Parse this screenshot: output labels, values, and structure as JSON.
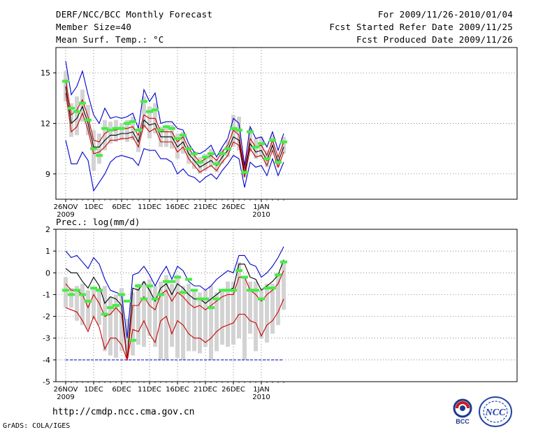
{
  "header": {
    "title": "DERF/NCC/BCC Monthly Forecast",
    "member_size": "Member Size=40",
    "variable": "Mean Surf. Temp.: °C",
    "period": "For 2009/11/26-2010/01/04",
    "fcst_started": "Fcst Started Refer Date 2009/11/25",
    "fcst_produced": "Fcst Produced Date 2009/11/26"
  },
  "footer": {
    "url": "http://cmdp.ncc.cma.gov.cn",
    "credit": "GrADS: COLA/IGES",
    "logo_bcc_text": "BCC",
    "logo_ncc_text": "NCC"
  },
  "colors": {
    "mean": "#000000",
    "sd": "#cc0000",
    "range": "#0000cc",
    "box": "#d3d3d3",
    "obs": "#44ee44",
    "baseline": "#0000cc",
    "grid": "#555555"
  },
  "chart_data": [
    {
      "type": "line",
      "title": "Mean Surf. Temp.: °C",
      "ylim": [
        7.5,
        16.5
      ],
      "yticks": [
        9,
        12,
        15
      ],
      "xtick_index": [
        0,
        5,
        10,
        15,
        20,
        25,
        30,
        35
      ],
      "xtick_labels": [
        "26NOV",
        "1DEC",
        "6DEC",
        "11DEC",
        "16DEC",
        "21DEC",
        "26DEC",
        "1JAN"
      ],
      "xtick_years": {
        "0": "2009",
        "35": "2010"
      },
      "grid": "dotted",
      "series": [
        {
          "name": "ensemble mean",
          "color": "black",
          "values": [
            14.2,
            12.0,
            12.3,
            13.0,
            12.0,
            10.6,
            10.6,
            11.0,
            11.3,
            11.3,
            11.4,
            11.4,
            11.5,
            10.9,
            12.2,
            11.9,
            12.0,
            11.2,
            11.2,
            11.2,
            10.6,
            10.9,
            10.2,
            9.8,
            9.4,
            9.6,
            9.8,
            9.5,
            10.0,
            10.4,
            11.2,
            11.0,
            9.0,
            10.8,
            10.3,
            10.4,
            9.8,
            10.7,
            9.7,
            10.6
          ]
        },
        {
          "name": "mean + sd",
          "color": "red",
          "values": [
            14.6,
            12.5,
            12.8,
            13.4,
            12.4,
            11.0,
            10.9,
            11.4,
            11.6,
            11.6,
            11.7,
            11.7,
            11.8,
            11.3,
            12.5,
            12.3,
            12.3,
            11.5,
            11.5,
            11.5,
            10.9,
            11.2,
            10.5,
            10.1,
            9.7,
            9.9,
            10.1,
            9.8,
            10.3,
            10.7,
            11.6,
            11.3,
            9.3,
            11.1,
            10.6,
            10.7,
            10.1,
            11.0,
            10.0,
            10.9
          ]
        },
        {
          "name": "mean - sd",
          "color": "red",
          "values": [
            13.8,
            11.5,
            11.8,
            12.6,
            11.6,
            10.2,
            10.3,
            10.6,
            11.0,
            11.0,
            11.1,
            11.1,
            11.2,
            10.6,
            11.9,
            11.5,
            11.7,
            10.9,
            10.9,
            10.9,
            10.3,
            10.6,
            9.9,
            9.5,
            9.1,
            9.3,
            9.5,
            9.2,
            9.7,
            10.1,
            10.9,
            10.7,
            8.8,
            10.5,
            10.0,
            10.1,
            9.5,
            10.4,
            9.4,
            10.3
          ]
        },
        {
          "name": "ensemble max",
          "color": "blue",
          "values": [
            15.7,
            13.7,
            14.2,
            15.1,
            13.7,
            12.5,
            12.0,
            12.9,
            12.3,
            12.4,
            12.3,
            12.4,
            12.6,
            11.7,
            14.0,
            13.3,
            13.8,
            12.0,
            12.1,
            12.1,
            11.7,
            11.6,
            10.8,
            10.3,
            10.2,
            10.4,
            10.7,
            10.0,
            10.6,
            11.1,
            12.3,
            12.0,
            9.5,
            11.8,
            11.1,
            11.2,
            10.6,
            11.5,
            10.4,
            11.4
          ]
        },
        {
          "name": "ensemble min",
          "color": "blue",
          "values": [
            11.0,
            9.6,
            9.6,
            10.3,
            9.8,
            8.0,
            8.5,
            9.0,
            9.7,
            10.0,
            10.1,
            10.0,
            9.9,
            9.5,
            10.5,
            10.4,
            10.4,
            9.9,
            9.9,
            9.7,
            9.0,
            9.3,
            8.9,
            8.8,
            8.5,
            8.8,
            9.0,
            8.7,
            9.2,
            9.6,
            10.1,
            9.9,
            8.2,
            9.7,
            9.4,
            9.5,
            8.9,
            9.9,
            8.9,
            9.7
          ]
        },
        {
          "name": "observed / climatology",
          "color": "green",
          "values": [
            14.5,
            12.9,
            12.7,
            13.2,
            12.2,
            10.5,
            10.1,
            11.7,
            11.6,
            11.7,
            11.7,
            12.0,
            12.1,
            11.6,
            13.3,
            12.7,
            12.8,
            11.6,
            11.8,
            11.7,
            11.1,
            11.3,
            10.5,
            10.2,
            9.7,
            10.0,
            10.2,
            9.6,
            10.2,
            10.5,
            11.7,
            11.6,
            9.1,
            11.5,
            10.6,
            10.8,
            9.9,
            11.0,
            9.7,
            10.9
          ]
        }
      ],
      "boxes": {
        "name": "member spread (25-75%)",
        "low": [
          13.3,
          11.2,
          11.3,
          12.1,
          11.3,
          9.2,
          9.6,
          10.4,
          10.8,
          10.9,
          11.0,
          10.9,
          11.0,
          10.3,
          11.7,
          11.1,
          11.4,
          10.6,
          10.6,
          10.5,
          9.9,
          10.2,
          9.6,
          9.3,
          9.0,
          9.2,
          9.4,
          9.1,
          9.6,
          10.0,
          10.6,
          10.4,
          8.8,
          10.3,
          9.9,
          10.0,
          9.4,
          10.3,
          9.4,
          10.2
        ],
        "high": [
          15.1,
          13.2,
          13.6,
          14.0,
          13.1,
          11.6,
          11.4,
          12.2,
          12.1,
          12.2,
          12.0,
          12.2,
          12.4,
          11.4,
          13.6,
          13.0,
          13.2,
          11.8,
          11.9,
          11.9,
          11.4,
          11.5,
          10.7,
          10.3,
          10.0,
          10.2,
          10.5,
          9.9,
          10.5,
          11.0,
          12.5,
          12.4,
          9.6,
          11.7,
          11.1,
          11.2,
          10.4,
          11.3,
          10.1,
          11.2
        ]
      }
    },
    {
      "type": "line",
      "title": "Prec.: log(mm/d)",
      "ylim": [
        -5,
        2
      ],
      "yticks": [
        -5,
        -4,
        -3,
        -2,
        -1,
        0,
        1,
        2
      ],
      "xtick_index": [
        0,
        5,
        10,
        15,
        20,
        25,
        30,
        35
      ],
      "xtick_labels": [
        "26NOV",
        "1DEC",
        "6DEC",
        "11DEC",
        "16DEC",
        "21DEC",
        "26DEC",
        "1JAN"
      ],
      "xtick_years": {
        "0": "2009",
        "35": "2010"
      },
      "grid": "dotted",
      "baseline": -4,
      "series": [
        {
          "name": "ensemble mean",
          "color": "black",
          "values": [
            0.2,
            0.0,
            0.0,
            -0.4,
            -0.7,
            -0.2,
            -0.6,
            -1.4,
            -1.1,
            -1.2,
            -1.5,
            -4.0,
            -0.7,
            -0.8,
            -0.4,
            -0.8,
            -1.3,
            -0.7,
            -0.5,
            -1.0,
            -0.5,
            -0.7,
            -1.0,
            -1.2,
            -1.2,
            -1.4,
            -1.2,
            -1.0,
            -0.8,
            -0.8,
            -0.7,
            0.4,
            0.4,
            -0.2,
            -0.3,
            -0.8,
            -0.6,
            -0.4,
            -0.1,
            0.6
          ]
        },
        {
          "name": "mean + sd",
          "color": "red",
          "values": [
            -0.5,
            -0.8,
            -0.8,
            -1.0,
            -1.6,
            -1.0,
            -1.4,
            -2.0,
            -1.9,
            -1.6,
            -1.9,
            -4.0,
            -1.5,
            -1.5,
            -1.1,
            -1.5,
            -1.7,
            -1.0,
            -0.8,
            -1.3,
            -0.9,
            -1.1,
            -1.4,
            -1.6,
            -1.5,
            -1.7,
            -1.5,
            -1.3,
            -1.1,
            -1.0,
            -1.0,
            -0.2,
            -0.2,
            -0.8,
            -1.0,
            -1.3,
            -1.0,
            -0.8,
            -0.5,
            0.1
          ]
        },
        {
          "name": "mean - sd",
          "color": "red",
          "values": [
            -1.6,
            -1.7,
            -1.8,
            -2.2,
            -2.7,
            -2.0,
            -2.5,
            -3.5,
            -3.0,
            -3.0,
            -3.3,
            -4.0,
            -2.6,
            -2.7,
            -2.2,
            -2.8,
            -3.2,
            -2.2,
            -2.0,
            -2.8,
            -2.2,
            -2.4,
            -2.8,
            -3.0,
            -3.0,
            -3.2,
            -3.0,
            -2.7,
            -2.5,
            -2.4,
            -2.3,
            -1.9,
            -1.9,
            -2.2,
            -2.3,
            -2.9,
            -2.4,
            -2.2,
            -1.8,
            -1.2
          ]
        },
        {
          "name": "ensemble max",
          "color": "blue",
          "values": [
            1.0,
            0.7,
            0.8,
            0.5,
            0.2,
            0.7,
            0.4,
            -0.3,
            -0.8,
            -0.9,
            -1.0,
            -3.0,
            -0.1,
            0.0,
            0.3,
            -0.1,
            -0.6,
            -0.1,
            0.3,
            -0.3,
            0.3,
            0.1,
            -0.4,
            -0.6,
            -0.6,
            -0.8,
            -0.6,
            -0.3,
            -0.1,
            0.1,
            0.0,
            0.8,
            0.8,
            0.4,
            0.3,
            -0.2,
            0.0,
            0.3,
            0.7,
            1.2
          ]
        },
        {
          "name": "ensemble min",
          "color": "blue",
          "values": [
            -4.0,
            -4.0,
            -4.0,
            -4.0,
            -4.0,
            -4.0,
            -4.0,
            -4.0,
            -4.0,
            -4.0,
            -4.0,
            -4.0,
            -4.0,
            -4.0,
            -4.0,
            -4.0,
            -4.0,
            -4.0,
            -4.0,
            -4.0,
            -4.0,
            -4.0,
            -4.0,
            -4.0,
            -4.0,
            -4.0,
            -4.0,
            -4.0,
            -4.0,
            -4.0,
            -4.0,
            -4.0,
            -4.0,
            -4.0,
            -4.0,
            -4.0,
            -4.0,
            -4.0,
            -4.0,
            -4.0
          ]
        },
        {
          "name": "observed / climatology",
          "color": "green",
          "values": [
            -0.8,
            -1.0,
            -0.8,
            -1.0,
            -1.3,
            -0.7,
            -0.8,
            -1.9,
            -1.6,
            -1.5,
            -1.0,
            -1.3,
            -3.1,
            -0.6,
            -1.2,
            -0.6,
            -1.2,
            -1.0,
            -0.4,
            -0.4,
            -0.2,
            -0.9,
            -0.3,
            -0.8,
            -1.2,
            -1.2,
            -1.6,
            -1.2,
            -0.8,
            -0.8,
            -0.8,
            0.1,
            -0.2,
            -0.8,
            -0.8,
            -1.2,
            -0.7,
            -0.7,
            -0.1,
            0.5
          ]
        }
      ],
      "boxes": {
        "name": "member spread (25-75%)",
        "low": [
          -1.6,
          -1.6,
          -2.2,
          -2.4,
          -2.6,
          -2.1,
          -2.4,
          -3.6,
          -3.8,
          -3.9,
          -3.6,
          -3.9,
          -3.8,
          -3.3,
          -3.4,
          -2.9,
          -3.4,
          -4.0,
          -4.0,
          -3.4,
          -3.9,
          -4.0,
          -3.6,
          -3.6,
          -3.7,
          -3.4,
          -4.0,
          -3.6,
          -3.3,
          -3.4,
          -3.3,
          -3.0,
          -4.0,
          -2.8,
          -3.6,
          -3.0,
          -3.2,
          -2.8,
          -2.4,
          -1.7
        ],
        "high": [
          -0.2,
          -0.7,
          -0.6,
          -0.5,
          -0.8,
          -0.7,
          -0.7,
          -0.6,
          -1.1,
          -1.0,
          -0.7,
          -2.1,
          -0.9,
          -0.5,
          -0.4,
          -0.3,
          -0.6,
          -0.4,
          -0.1,
          -0.5,
          -0.1,
          -0.6,
          -0.5,
          -0.8,
          -0.9,
          -0.8,
          -0.6,
          -0.9,
          -0.8,
          -0.4,
          -0.4,
          0.5,
          -0.2,
          -0.4,
          -0.4,
          -0.8,
          -0.5,
          -0.5,
          0.0,
          0.5
        ]
      }
    }
  ]
}
